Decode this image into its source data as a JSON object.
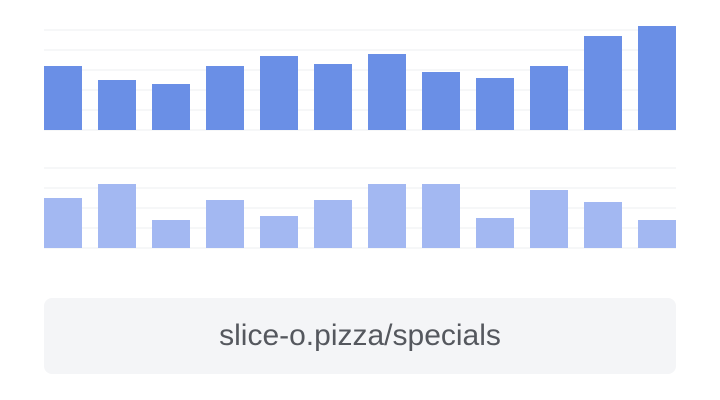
{
  "chart_data": [
    {
      "type": "bar",
      "values": [
        3.2,
        2.5,
        2.3,
        3.2,
        3.7,
        3.3,
        3.8,
        2.9,
        2.6,
        3.2,
        4.7,
        5.2
      ],
      "color": "#6a8fe6",
      "ylim": [
        0,
        5.2
      ],
      "yticks": [
        0,
        1,
        2,
        3,
        4,
        5
      ],
      "grid": true
    },
    {
      "type": "bar",
      "values": [
        2.5,
        3.2,
        1.4,
        2.4,
        1.6,
        2.4,
        3.2,
        3.2,
        1.5,
        2.9,
        2.3,
        1.4
      ],
      "color": "#a3b8f2",
      "ylim": [
        0,
        4
      ],
      "yticks": [
        0,
        1,
        2,
        3,
        4
      ],
      "grid": true
    }
  ],
  "url": "slice-o.pizza/specials"
}
